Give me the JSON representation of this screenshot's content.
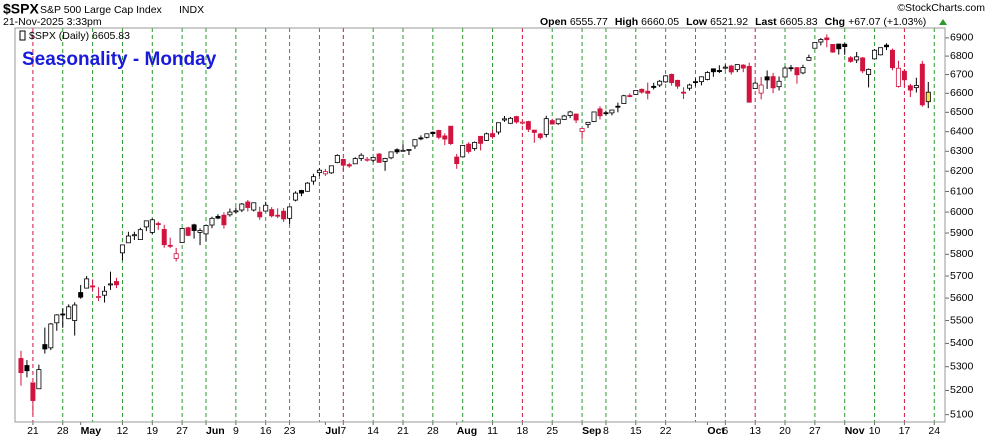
{
  "chart_data": {
    "type": "candlestick",
    "header": {
      "symbol": "$SPX",
      "name": "S&P 500 Large Cap Index",
      "exchange": "INDX",
      "timestamp": "21-Nov-2025 3:33pm",
      "source": "©StockCharts.com",
      "quote": [
        {
          "label": "Open",
          "value": "6555.77"
        },
        {
          "label": "High",
          "value": "6660.05"
        },
        {
          "label": "Low",
          "value": "6521.92"
        },
        {
          "label": "Last",
          "value": "6605.83"
        },
        {
          "label": "Chg",
          "value": "+67.07 (+1.03%)"
        }
      ]
    },
    "legend": "$SPX (Daily) 6605.83",
    "title": "Seasonality - Monday",
    "categories": [
      null,
      null,
      "21",
      null,
      null,
      null,
      null,
      "28",
      null,
      null,
      "May",
      null,
      null,
      null,
      null,
      null,
      null,
      "12",
      null,
      null,
      null,
      null,
      "19",
      null,
      null,
      null,
      null,
      "27",
      null,
      null,
      null,
      "Jun",
      null,
      null,
      null,
      null,
      "9",
      null,
      null,
      null,
      null,
      "16",
      null,
      null,
      null,
      "23",
      null,
      null,
      null,
      null,
      null,
      "Jul",
      null,
      null,
      "7",
      null,
      null,
      null,
      null,
      "14",
      null,
      null,
      null,
      null,
      "21",
      null,
      null,
      null,
      null,
      "28",
      null,
      null,
      null,
      "Aug",
      null,
      null,
      null,
      null,
      null,
      "11",
      null,
      null,
      null,
      null,
      "18",
      null,
      null,
      null,
      null,
      "25",
      null,
      null,
      null,
      null,
      "Sep",
      null,
      null,
      null,
      "8",
      null,
      null,
      null,
      null,
      "15",
      null,
      null,
      null,
      null,
      "22",
      null,
      null,
      null,
      null,
      null,
      null,
      "Oct",
      null,
      null,
      "6",
      null,
      null,
      null,
      null,
      "13",
      null,
      null,
      null,
      null,
      "20",
      null,
      null,
      null,
      null,
      "27",
      null,
      null,
      null,
      null,
      "Nov",
      null,
      null,
      null,
      null,
      "10",
      null,
      null,
      null,
      null,
      "17",
      null,
      null,
      null,
      null,
      "24"
    ],
    "open": [
      5335,
      5305,
      5232,
      5207,
      5395,
      5381,
      5490,
      5529,
      5508,
      5500,
      5625,
      5645,
      5655,
      5606,
      5613,
      5663,
      5675,
      5807,
      5854,
      5888,
      5869,
      5929,
      5903,
      5945,
      5917,
      5842,
      5781,
      5855,
      5925,
      5939,
      5903,
      5896,
      5938,
      5979,
      5985,
      5987,
      6004,
      6010,
      6049,
      6010,
      6000,
      6005,
      6012,
      5985,
      6004,
      5970,
      6058,
      6105,
      6101,
      6151,
      6193,
      6187,
      6192,
      6243,
      6259,
      6233,
      6237,
      6264,
      6256,
      6255,
      6286,
      6249,
      6267,
      6308,
      6304,
      6307,
      6327,
      6368,
      6371,
      6397,
      6406,
      6378,
      6428,
      6271,
      6272,
      6336,
      6314,
      6376,
      6355,
      6390,
      6398,
      6460,
      6443,
      6478,
      6446,
      6452,
      6408,
      6388,
      6386,
      6457,
      6441,
      6463,
      6483,
      6491,
      6401,
      6437,
      6452,
      6518,
      6498,
      6497,
      6532,
      6546,
      6588,
      6594,
      6621,
      6611,
      6637,
      6644,
      6661,
      6701,
      6669,
      6606,
      6627,
      6662,
      6662,
      6674,
      6731,
      6722,
      6736,
      6746,
      6727,
      6751,
      6744,
      6625,
      6601,
      6688,
      6689,
      6635,
      6687,
      6737,
      6737,
      6709,
      6777,
      6843,
      6877,
      6900,
      6864,
      6866,
      6865,
      6791,
      6779,
      6790,
      6700,
      6785,
      6807,
      6860,
      6832,
      6636,
      6718,
      6640,
      6630,
      6756,
      6555.77,
      null
    ],
    "high": [
      5368,
      5328,
      5232,
      5309,
      5469,
      5489,
      5528,
      5554,
      5572,
      5581,
      5659,
      5700,
      5684,
      5649,
      5654,
      5720,
      5692,
      5845,
      5906,
      5906,
      5925,
      5959,
      5969,
      5954,
      5939,
      5878,
      5830,
      5924,
      5930,
      5944,
      5922,
      5937,
      5978,
      5990,
      5999,
      6017,
      6022,
      6044,
      6059,
      6046,
      6026,
      6050,
      6024,
      6018,
      6019,
      6025,
      6101,
      6108,
      6146,
      6187,
      6215,
      6211,
      6228,
      6285,
      6263,
      6242,
      6270,
      6290,
      6271,
      6272,
      6291,
      6267,
      6298,
      6315,
      6336,
      6310,
      6360,
      6381,
      6390,
      6401,
      6410,
      6391,
      6428,
      6287,
      6331,
      6346,
      6350,
      6378,
      6395,
      6410,
      6446,
      6481,
      6476,
      6482,
      6456,
      6456,
      6408,
      6394,
      6482,
      6466,
      6467,
      6487,
      6508,
      6493,
      6416,
      6450,
      6502,
      6532,
      6509,
      6513,
      6551,
      6592,
      6600,
      6616,
      6626,
      6657,
      6656,
      6671,
      6697,
      6705,
      6672,
      6632,
      6651,
      6680,
      6690,
      6718,
      6731,
      6750,
      6754,
      6753,
      6754,
      6756,
      6764,
      6664,
      6687,
      6722,
      6709,
      6690,
      6744,
      6752,
      6741,
      6753,
      6808,
      6876,
      6899,
      6920,
      6864,
      6866,
      6871,
      6800,
      6822,
      6795,
      6733,
      6838,
      6847,
      6870,
      6841,
      6775,
      6730,
      6650,
      6683,
      6774,
      6660.05,
      null
    ],
    "low": [
      5220,
      5255,
      5101,
      5207,
      5356,
      5371,
      5455,
      5468,
      5506,
      5434,
      5597,
      5644,
      5629,
      5587,
      5580,
      5637,
      5645,
      5772,
      5853,
      5867,
      5867,
      5909,
      5896,
      5915,
      5831,
      5829,
      5767,
      5854,
      5885,
      5874,
      5843,
      5861,
      5923,
      5966,
      5921,
      5978,
      5994,
      6000,
      6003,
      6003,
      5963,
      6005,
      5974,
      5971,
      5953,
      5943,
      6052,
      6077,
      6099,
      6133,
      6176,
      6177,
      6187,
      6240,
      6201,
      6217,
      6236,
      6251,
      6248,
      6245,
      6243,
      6202,
      6260,
      6286,
      6303,
      6281,
      6312,
      6356,
      6365,
      6375,
      6361,
      6331,
      6332,
      6212,
      6271,
      6289,
      6303,
      6304,
      6352,
      6364,
      6385,
      6450,
      6441,
      6441,
      6437,
      6398,
      6343,
      6360,
      6371,
      6438,
      6435,
      6463,
      6470,
      6444,
      6360,
      6419,
      6449,
      6463,
      6483,
      6484,
      6500,
      6546,
      6579,
      6594,
      6598,
      6568,
      6620,
      6633,
      6656,
      6641,
      6624,
      6570,
      6614,
      6638,
      6642,
      6669,
      6688,
      6708,
      6727,
      6700,
      6713,
      6713,
      6551,
      6624,
      6568,
      6623,
      6601,
      6615,
      6684,
      6717,
      6651,
      6702,
      6775,
      6843,
      6858,
      6848,
      6818,
      6808,
      6807,
      6764,
      6762,
      6708,
      6631,
      6785,
      6804,
      6833,
      6723,
      6630,
      6643,
      6580,
      6604,
      6529,
      6521.92,
      null
    ],
    "close": [
      5275,
      5283,
      5158,
      5288,
      5376,
      5485,
      5525,
      5529,
      5561,
      5569,
      5604,
      5687,
      5650,
      5607,
      5631,
      5664,
      5660,
      5844,
      5886,
      5892,
      5916,
      5958,
      5963,
      5940,
      5845,
      5842,
      5803,
      5922,
      5889,
      5912,
      5912,
      5936,
      5970,
      5971,
      5939,
      6000,
      6006,
      6039,
      6022,
      6045,
      5977,
      6033,
      5982,
      5981,
      5967,
      6025,
      6092,
      6092,
      6141,
      6173,
      6205,
      6198,
      6227,
      6279,
      6230,
      6226,
      6263,
      6280,
      6260,
      6269,
      6244,
      6264,
      6297,
      6297,
      6305,
      6309,
      6359,
      6363,
      6389,
      6390,
      6371,
      6362,
      6339,
      6238,
      6330,
      6299,
      6345,
      6340,
      6389,
      6374,
      6446,
      6466,
      6469,
      6450,
      6449,
      6412,
      6396,
      6370,
      6467,
      6439,
      6465,
      6481,
      6502,
      6460,
      6416,
      6448,
      6502,
      6482,
      6495,
      6512,
      6532,
      6587,
      6584,
      6615,
      6606,
      6600,
      6631,
      6664,
      6693,
      6657,
      6638,
      6605,
      6644,
      6661,
      6688,
      6711,
      6715,
      6716,
      6740,
      6714,
      6754,
      6735,
      6553,
      6654,
      6644,
      6671,
      6629,
      6664,
      6735,
      6735,
      6699,
      6738,
      6792,
      6875,
      6891,
      6890,
      6822,
      6840,
      6852,
      6771,
      6796,
      6720,
      6728,
      6832,
      6846,
      6851,
      6737,
      6734,
      6672,
      6617,
      6642,
      6539,
      6605.83,
      null
    ],
    "up_color": "#000000",
    "down_color": "#d1143f",
    "last_bar_fill": "#f3e54a",
    "vlines": [
      {
        "at": 2,
        "color": "#d1143f"
      },
      {
        "at": 7,
        "color": "#2b9a2b"
      },
      {
        "at": 12,
        "color": "#2b9a2b"
      },
      {
        "at": 17,
        "color": "#2b9a2b"
      },
      {
        "at": 22,
        "color": "#2b9a2b"
      },
      {
        "at": 27,
        "color": "#2b9a2b"
      },
      {
        "at": 31,
        "color": "#2b9a2b"
      },
      {
        "at": 36,
        "color": "#2b9a2b"
      },
      {
        "at": 41,
        "color": "#2b9a2b"
      },
      {
        "at": 45,
        "color": "#2b9a2b"
      },
      {
        "at": 50,
        "color": "#2b9a2b"
      },
      {
        "at": 54,
        "color": "#d1143f"
      },
      {
        "at": 59,
        "color": "#2b9a2b"
      },
      {
        "at": 64,
        "color": "#2b9a2b"
      },
      {
        "at": 69,
        "color": "#2b9a2b"
      },
      {
        "at": 74,
        "color": "#2b9a2b"
      },
      {
        "at": 79,
        "color": "#2b9a2b"
      },
      {
        "at": 84,
        "color": "#d1143f"
      },
      {
        "at": 89,
        "color": "#2b9a2b"
      },
      {
        "at": 94,
        "color": "#2b9a2b"
      },
      {
        "at": 98,
        "color": "#2b9a2b"
      },
      {
        "at": 103,
        "color": "#2b9a2b"
      },
      {
        "at": 108,
        "color": "#2b9a2b"
      },
      {
        "at": 113,
        "color": "#2b9a2b"
      },
      {
        "at": 118,
        "color": "#2b9a2b"
      },
      {
        "at": 123,
        "color": "#d1143f"
      },
      {
        "at": 128,
        "color": "#2b9a2b"
      },
      {
        "at": 133,
        "color": "#2b9a2b"
      },
      {
        "at": 138,
        "color": "#2b9a2b"
      },
      {
        "at": 143,
        "color": "#2b9a2b"
      },
      {
        "at": 148,
        "color": "#d1143f"
      },
      {
        "at": 153,
        "color": "#2b9a2b"
      }
    ],
    "ylim": [
      5070,
      6955
    ],
    "log_scale": true,
    "yticks": [
      5100,
      5200,
      5300,
      5400,
      5500,
      5600,
      5700,
      5800,
      5900,
      6000,
      6100,
      6200,
      6300,
      6400,
      6500,
      6600,
      6700,
      6800,
      6900
    ]
  }
}
